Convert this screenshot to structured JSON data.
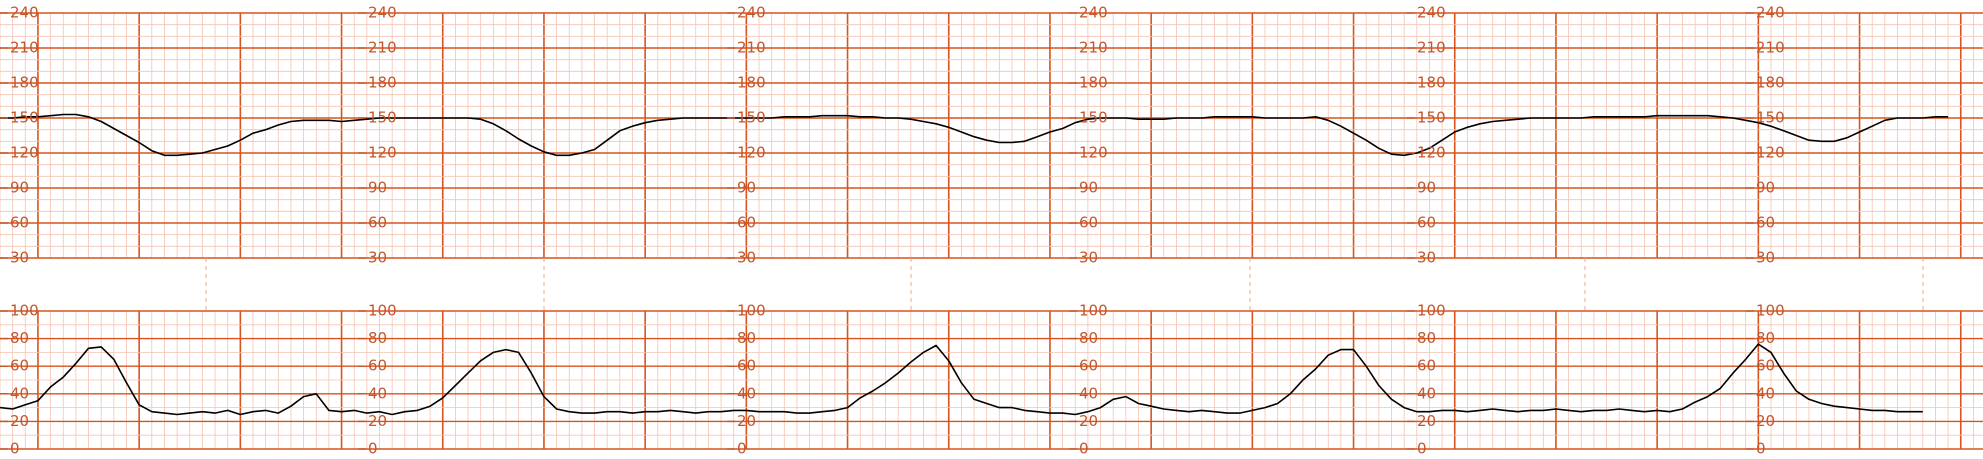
{
  "chart_data": [
    {
      "type": "line",
      "ylim": [
        30,
        240
      ],
      "yticks": [
        30,
        60,
        90,
        120,
        150,
        180,
        210,
        240
      ],
      "grid": true,
      "series": [
        {
          "color": "#000000",
          "values": [
            150,
            150,
            151,
            151,
            152,
            153,
            153,
            151,
            147,
            141,
            135,
            129,
            122,
            118,
            118,
            119,
            120,
            123,
            126,
            131,
            137,
            140,
            144,
            147,
            148,
            148,
            148,
            147,
            148,
            149,
            150,
            150,
            150,
            150,
            150,
            150,
            150,
            150,
            149,
            145,
            139,
            132,
            126,
            121,
            118,
            118,
            120,
            123,
            131,
            139,
            143,
            146,
            148,
            149,
            150,
            150,
            150,
            150,
            150,
            150,
            150,
            150,
            151,
            151,
            151,
            152,
            152,
            152,
            151,
            151,
            150,
            150,
            149,
            147,
            145,
            142,
            138,
            134,
            131,
            129,
            129,
            130,
            134,
            138,
            141,
            146,
            149,
            150,
            150,
            150,
            149,
            149,
            149,
            150,
            150,
            150,
            151,
            151,
            151,
            151,
            150,
            150,
            150,
            150,
            151,
            148,
            143,
            137,
            131,
            124,
            119,
            118,
            120,
            124,
            131,
            138,
            142,
            145,
            147,
            148,
            149,
            150,
            150,
            150,
            150,
            150,
            151,
            151,
            151,
            151,
            151,
            152,
            152,
            152,
            152,
            152,
            151,
            150,
            148,
            146,
            143,
            139,
            135,
            131,
            130,
            130,
            133,
            138,
            143,
            148,
            150,
            150,
            150,
            151,
            151
          ]
        }
      ]
    },
    {
      "type": "line",
      "ylim": [
        0,
        100
      ],
      "yticks": [
        0,
        20,
        40,
        60,
        80,
        100
      ],
      "grid": true,
      "series": [
        {
          "color": "#000000",
          "values": [
            30,
            29,
            32,
            35,
            45,
            52,
            62,
            73,
            74,
            65,
            48,
            32,
            27,
            26,
            25,
            26,
            27,
            26,
            28,
            25,
            27,
            28,
            26,
            31,
            38,
            40,
            28,
            27,
            28,
            26,
            27,
            25,
            27,
            28,
            31,
            37,
            46,
            55,
            64,
            70,
            72,
            70,
            55,
            38,
            29,
            27,
            26,
            26,
            27,
            27,
            26,
            27,
            27,
            28,
            27,
            26,
            27,
            27,
            28,
            28,
            27,
            27,
            27,
            26,
            26,
            27,
            28,
            30,
            37,
            42,
            48,
            55,
            63,
            70,
            75,
            64,
            48,
            36,
            33,
            30,
            30,
            28,
            27,
            26,
            26,
            25,
            27,
            30,
            36,
            38,
            33,
            31,
            29,
            28,
            27,
            28,
            27,
            26,
            26,
            28,
            30,
            33,
            40,
            50,
            58,
            68,
            72,
            72,
            60,
            46,
            36,
            30,
            27,
            27,
            28,
            28,
            27,
            28,
            29,
            28,
            27,
            28,
            28,
            29,
            28,
            27,
            28,
            28,
            29,
            28,
            27,
            28,
            27,
            29,
            34,
            38,
            44,
            55,
            65,
            76,
            70,
            55,
            42,
            36,
            33,
            31,
            30,
            29,
            28,
            28,
            27,
            27,
            27
          ]
        }
      ]
    }
  ]
}
